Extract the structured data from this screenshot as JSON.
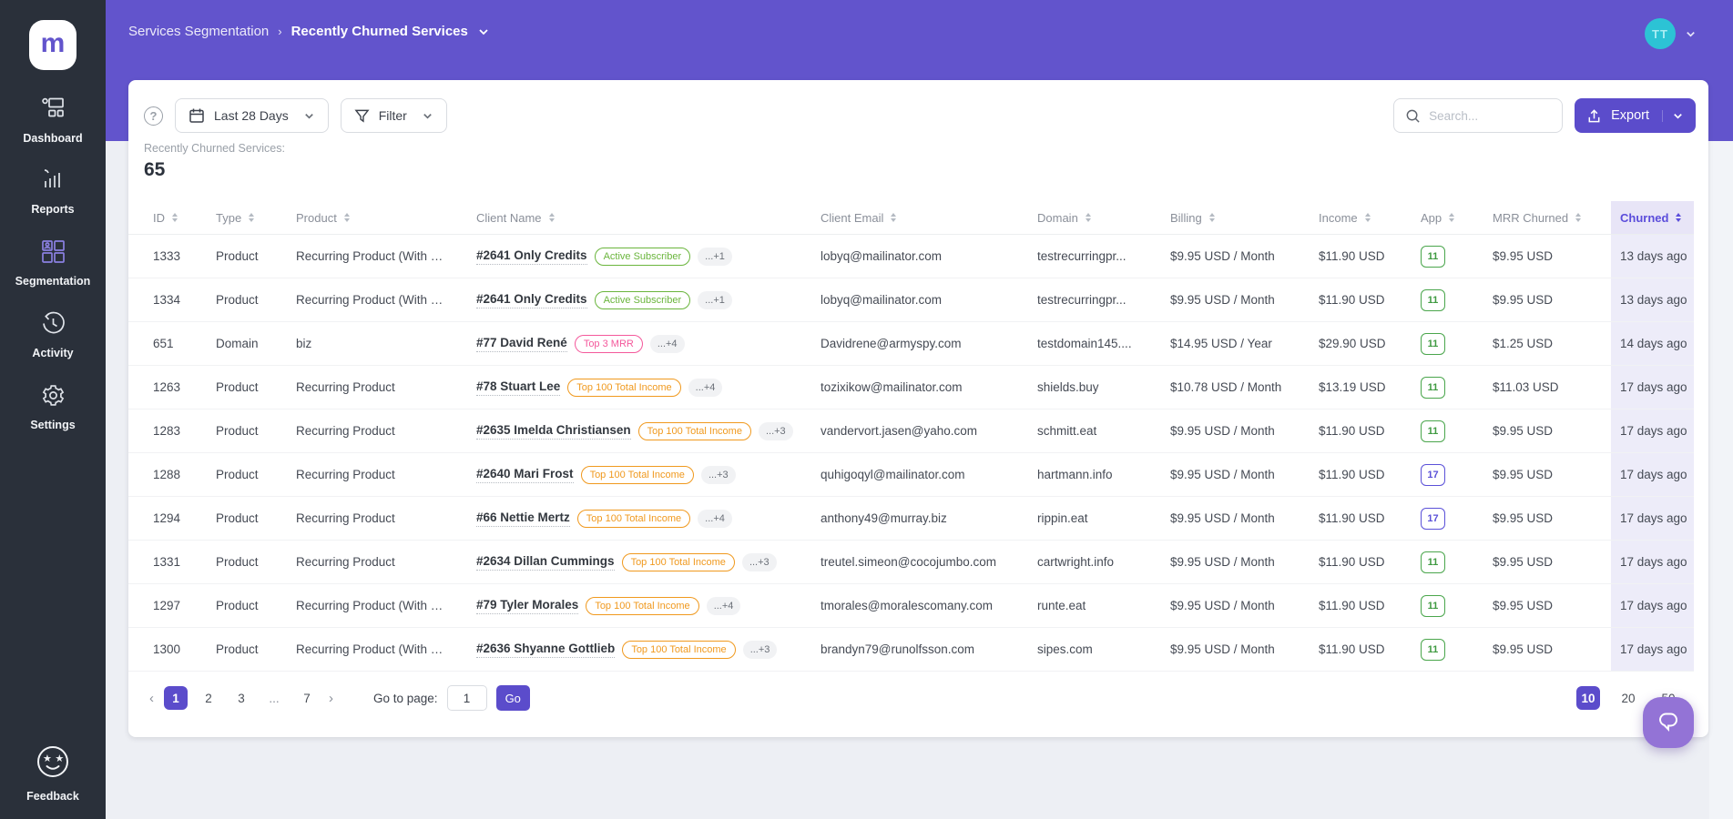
{
  "accent_color": "#6254cc",
  "sidebar": {
    "items": [
      {
        "label": "Dashboard",
        "icon": "dashboard-icon"
      },
      {
        "label": "Reports",
        "icon": "reports-icon"
      },
      {
        "label": "Segmentation",
        "icon": "segmentation-icon"
      },
      {
        "label": "Activity",
        "icon": "activity-icon"
      },
      {
        "label": "Settings",
        "icon": "settings-icon"
      }
    ],
    "feedback_label": "Feedback",
    "logo_letter": "m"
  },
  "header": {
    "breadcrumb_root": "Services Segmentation",
    "breadcrumb_separator": "›",
    "breadcrumb_current": "Recently Churned Services",
    "avatar_initials": "TT"
  },
  "toolbar": {
    "date_range_label": "Last 28 Days",
    "filter_label": "Filter",
    "search_placeholder": "Search...",
    "export_label": "Export"
  },
  "summary": {
    "label": "Recently Churned Services:",
    "count": "65"
  },
  "table": {
    "columns": [
      "ID",
      "Type",
      "Product",
      "Client Name",
      "Client Email",
      "Domain",
      "Billing",
      "Income",
      "App",
      "MRR Churned",
      "Churned"
    ],
    "rows": [
      {
        "id": "1333",
        "type": "Product",
        "product": "Recurring Product (With …",
        "client_name": "#2641 Only Credits",
        "badge": {
          "label": "Active Subscriber",
          "color": "green"
        },
        "more": "...+1",
        "email": "lobyq@mailinator.com",
        "domain": "testrecurringpr...",
        "billing": "$9.95 USD / Month",
        "income": "$11.90 USD",
        "app": {
          "value": "11",
          "color": "green"
        },
        "mrr_churned": "$9.95 USD",
        "churned": "13 days ago"
      },
      {
        "id": "1334",
        "type": "Product",
        "product": "Recurring Product (With …",
        "client_name": "#2641 Only Credits",
        "badge": {
          "label": "Active Subscriber",
          "color": "green"
        },
        "more": "...+1",
        "email": "lobyq@mailinator.com",
        "domain": "testrecurringpr...",
        "billing": "$9.95 USD / Month",
        "income": "$11.90 USD",
        "app": {
          "value": "11",
          "color": "green"
        },
        "mrr_churned": "$9.95 USD",
        "churned": "13 days ago"
      },
      {
        "id": "651",
        "type": "Domain",
        "product": "biz",
        "client_name": "#77 David René",
        "badge": {
          "label": "Top 3 MRR",
          "color": "pink"
        },
        "more": "...+4",
        "email": "Davidrene@armyspy.com",
        "domain": "testdomain145....",
        "billing": "$14.95 USD / Year",
        "income": "$29.90 USD",
        "app": {
          "value": "11",
          "color": "green"
        },
        "mrr_churned": "$1.25 USD",
        "churned": "14 days ago"
      },
      {
        "id": "1263",
        "type": "Product",
        "product": "Recurring Product",
        "client_name": "#78 Stuart Lee",
        "badge": {
          "label": "Top 100 Total Income",
          "color": "orange"
        },
        "more": "...+4",
        "email": "tozixikow@mailinator.com",
        "domain": "shields.buy",
        "billing": "$10.78 USD / Month",
        "income": "$13.19 USD",
        "app": {
          "value": "11",
          "color": "green"
        },
        "mrr_churned": "$11.03 USD",
        "churned": "17 days ago"
      },
      {
        "id": "1283",
        "type": "Product",
        "product": "Recurring Product",
        "client_name": "#2635 Imelda Christiansen",
        "badge": {
          "label": "Top 100 Total Income",
          "color": "orange"
        },
        "more": "...+3",
        "email": "vandervort.jasen@yaho.com",
        "domain": "schmitt.eat",
        "billing": "$9.95 USD / Month",
        "income": "$11.90 USD",
        "app": {
          "value": "11",
          "color": "green"
        },
        "mrr_churned": "$9.95 USD",
        "churned": "17 days ago"
      },
      {
        "id": "1288",
        "type": "Product",
        "product": "Recurring Product",
        "client_name": "#2640 Mari Frost",
        "badge": {
          "label": "Top 100 Total Income",
          "color": "orange"
        },
        "more": "...+3",
        "email": "quhigoqyl@mailinator.com",
        "domain": "hartmann.info",
        "billing": "$9.95 USD / Month",
        "income": "$11.90 USD",
        "app": {
          "value": "17",
          "color": "purple"
        },
        "mrr_churned": "$9.95 USD",
        "churned": "17 days ago"
      },
      {
        "id": "1294",
        "type": "Product",
        "product": "Recurring Product",
        "client_name": "#66 Nettie Mertz",
        "badge": {
          "label": "Top 100 Total Income",
          "color": "orange"
        },
        "more": "...+4",
        "email": "anthony49@murray.biz",
        "domain": "rippin.eat",
        "billing": "$9.95 USD / Month",
        "income": "$11.90 USD",
        "app": {
          "value": "17",
          "color": "purple"
        },
        "mrr_churned": "$9.95 USD",
        "churned": "17 days ago"
      },
      {
        "id": "1331",
        "type": "Product",
        "product": "Recurring Product",
        "client_name": "#2634 Dillan Cummings",
        "badge": {
          "label": "Top 100 Total Income",
          "color": "orange"
        },
        "more": "...+3",
        "email": "treutel.simeon@cocojumbo.com",
        "domain": "cartwright.info",
        "billing": "$9.95 USD / Month",
        "income": "$11.90 USD",
        "app": {
          "value": "11",
          "color": "green"
        },
        "mrr_churned": "$9.95 USD",
        "churned": "17 days ago"
      },
      {
        "id": "1297",
        "type": "Product",
        "product": "Recurring Product (With …",
        "client_name": "#79 Tyler Morales",
        "badge": {
          "label": "Top 100 Total Income",
          "color": "orange"
        },
        "more": "...+4",
        "email": "tmorales@moralescomany.com",
        "domain": "runte.eat",
        "billing": "$9.95 USD / Month",
        "income": "$11.90 USD",
        "app": {
          "value": "11",
          "color": "green"
        },
        "mrr_churned": "$9.95 USD",
        "churned": "17 days ago"
      },
      {
        "id": "1300",
        "type": "Product",
        "product": "Recurring Product (With …",
        "client_name": "#2636 Shyanne Gottlieb",
        "badge": {
          "label": "Top 100 Total Income",
          "color": "orange"
        },
        "more": "...+3",
        "email": "brandyn79@runolfsson.com",
        "domain": "sipes.com",
        "billing": "$9.95 USD / Month",
        "income": "$11.90 USD",
        "app": {
          "value": "11",
          "color": "green"
        },
        "mrr_churned": "$9.95 USD",
        "churned": "17 days ago"
      }
    ]
  },
  "pagination": {
    "prev": "‹",
    "next": "›",
    "pages": [
      {
        "label": "1",
        "active": true
      },
      {
        "label": "2",
        "active": false
      },
      {
        "label": "3",
        "active": false
      },
      {
        "label": "...",
        "active": false,
        "dots": true
      },
      {
        "label": "7",
        "active": false
      }
    ],
    "goto_label": "Go to page:",
    "goto_value": "1",
    "go_label": "Go",
    "page_sizes": [
      {
        "label": "10",
        "active": true
      },
      {
        "label": "20",
        "active": false
      },
      {
        "label": "50",
        "active": false
      }
    ]
  }
}
